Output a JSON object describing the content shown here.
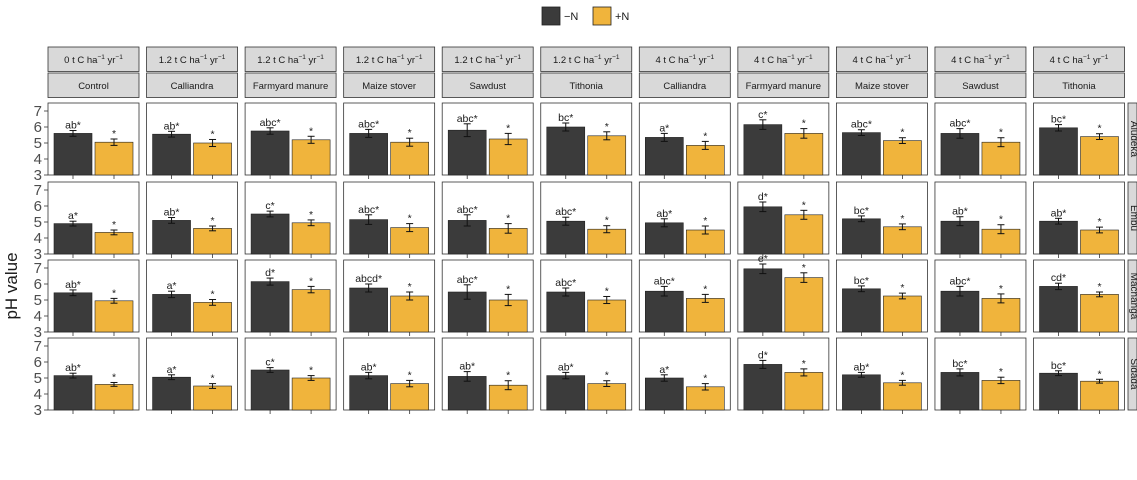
{
  "chart_data": {
    "type": "bar",
    "ylabel": "pH value",
    "ylim": [
      3,
      7.5
    ],
    "yticks": [
      3,
      4,
      5,
      6,
      7
    ],
    "legend": {
      "position": "top",
      "items": [
        {
          "label": "−N",
          "color": "#3b3b3b"
        },
        {
          "label": "+N",
          "color": "#f0b43c"
        }
      ]
    },
    "series": [
      {
        "name": "−N",
        "color": "#3b3b3b"
      },
      {
        "name": "+N",
        "color": "#f0b43c"
      }
    ],
    "columns": [
      {
        "rate": "0 t C ha",
        "treatment": "Control"
      },
      {
        "rate": "1.2 t C ha",
        "treatment": "Calliandra"
      },
      {
        "rate": "1.2 t C ha",
        "treatment": "Farmyard manure"
      },
      {
        "rate": "1.2 t C ha",
        "treatment": "Maize stover"
      },
      {
        "rate": "1.2 t C ha",
        "treatment": "Sawdust"
      },
      {
        "rate": "1.2 t C ha",
        "treatment": "Tithonia"
      },
      {
        "rate": "4 t C ha",
        "treatment": "Calliandra"
      },
      {
        "rate": "4 t C ha",
        "treatment": "Farmyard manure"
      },
      {
        "rate": "4 t C ha",
        "treatment": "Maize stover"
      },
      {
        "rate": "4 t C ha",
        "treatment": "Sawdust"
      },
      {
        "rate": "4 t C ha",
        "treatment": "Tithonia"
      }
    ],
    "rate_suffix": " yr",
    "rate_sup1": "−1",
    "rate_sup2": "−1",
    "rows": [
      {
        "site": "Aludeka",
        "minusN": [
          5.6,
          5.55,
          5.75,
          5.6,
          5.8,
          6.0,
          5.35,
          6.15,
          5.65,
          5.6,
          5.95
        ],
        "minusN_err": [
          0.18,
          0.18,
          0.2,
          0.25,
          0.4,
          0.25,
          0.25,
          0.3,
          0.18,
          0.3,
          0.2
        ],
        "plusN": [
          5.05,
          5.0,
          5.2,
          5.05,
          5.25,
          5.45,
          4.85,
          5.6,
          5.15,
          5.05,
          5.4
        ],
        "plusN_err": [
          0.2,
          0.22,
          0.22,
          0.25,
          0.35,
          0.25,
          0.25,
          0.3,
          0.18,
          0.28,
          0.18
        ],
        "minusN_sig": [
          "ab*",
          "ab*",
          "abc*",
          "abc*",
          "abc*",
          "bc*",
          "a*",
          "c*",
          "abc*",
          "abc*",
          "bc*"
        ],
        "plusN_sig": [
          "*",
          "*",
          "*",
          "*",
          "*",
          "*",
          "*",
          "*",
          "*",
          "*",
          "*"
        ]
      },
      {
        "site": "Embu",
        "minusN": [
          4.9,
          5.1,
          5.5,
          5.15,
          5.1,
          5.05,
          4.95,
          5.95,
          5.2,
          5.05,
          5.05
        ],
        "minusN_err": [
          0.15,
          0.18,
          0.18,
          0.3,
          0.35,
          0.25,
          0.25,
          0.3,
          0.18,
          0.28,
          0.18
        ],
        "plusN": [
          4.35,
          4.6,
          4.95,
          4.65,
          4.6,
          4.55,
          4.5,
          5.45,
          4.7,
          4.55,
          4.5
        ],
        "plusN_err": [
          0.15,
          0.15,
          0.18,
          0.25,
          0.3,
          0.22,
          0.25,
          0.28,
          0.18,
          0.28,
          0.18
        ],
        "minusN_sig": [
          "a*",
          "ab*",
          "c*",
          "abc*",
          "abc*",
          "abc*",
          "ab*",
          "d*",
          "bc*",
          "ab*",
          "ab*"
        ],
        "plusN_sig": [
          "*",
          "*",
          "*",
          "*",
          "*",
          "*",
          "*",
          "*",
          "*",
          "*",
          "*"
        ]
      },
      {
        "site": "Machanga",
        "minusN": [
          5.45,
          5.35,
          6.15,
          5.75,
          5.5,
          5.5,
          5.55,
          6.95,
          5.7,
          5.55,
          5.85
        ],
        "minusN_err": [
          0.18,
          0.2,
          0.22,
          0.25,
          0.45,
          0.25,
          0.3,
          0.3,
          0.18,
          0.3,
          0.2
        ],
        "plusN": [
          4.95,
          4.85,
          5.65,
          5.25,
          5.0,
          5.0,
          5.1,
          6.4,
          5.25,
          5.1,
          5.35
        ],
        "plusN_err": [
          0.15,
          0.18,
          0.2,
          0.25,
          0.35,
          0.22,
          0.25,
          0.3,
          0.18,
          0.28,
          0.15
        ],
        "minusN_sig": [
          "ab*",
          "a*",
          "d*",
          "abcd*",
          "abc*",
          "abc*",
          "abc*",
          "e*",
          "bc*",
          "abc*",
          "cd*"
        ],
        "plusN_sig": [
          "*",
          "*",
          "*",
          "*",
          "*",
          "*",
          "*",
          "*",
          "*",
          "*",
          "*"
        ]
      },
      {
        "site": "Sidada",
        "minusN": [
          5.15,
          5.05,
          5.5,
          5.15,
          5.1,
          5.15,
          5.0,
          5.85,
          5.2,
          5.35,
          5.3
        ],
        "minusN_err": [
          0.15,
          0.15,
          0.15,
          0.2,
          0.3,
          0.2,
          0.2,
          0.25,
          0.15,
          0.22,
          0.15
        ],
        "plusN": [
          4.6,
          4.5,
          5.0,
          4.65,
          4.55,
          4.65,
          4.45,
          5.35,
          4.7,
          4.85,
          4.8
        ],
        "plusN_err": [
          0.12,
          0.15,
          0.15,
          0.2,
          0.28,
          0.18,
          0.2,
          0.22,
          0.15,
          0.2,
          0.12
        ],
        "minusN_sig": [
          "ab*",
          "a*",
          "c*",
          "ab*",
          "ab*",
          "ab*",
          "a*",
          "d*",
          "ab*",
          "bc*",
          "bc*"
        ],
        "plusN_sig": [
          "*",
          "*",
          "*",
          "*",
          "*",
          "*",
          "*",
          "*",
          "*",
          "*",
          "*"
        ]
      }
    ]
  }
}
